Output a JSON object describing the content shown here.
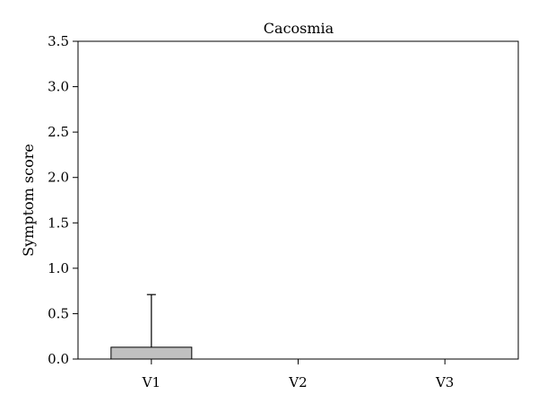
{
  "chart_data": {
    "type": "bar",
    "title": "Cacosmia",
    "xlabel": "",
    "ylabel": "Symptom score",
    "categories": [
      "V1",
      "V2",
      "V3"
    ],
    "series": [
      {
        "values": [
          0.13,
          0,
          0
        ],
        "error_upper": [
          0.58,
          0,
          0
        ],
        "color": "#c0c0c0"
      }
    ],
    "ylim": [
      0,
      3.5
    ],
    "yticks": [
      0.0,
      0.5,
      1.0,
      1.5,
      2.0,
      2.5,
      3.0,
      3.5
    ],
    "ytick_labels": [
      "0.0",
      "0.5",
      "1.0",
      "1.5",
      "2.0",
      "2.5",
      "3.0",
      "3.5"
    ],
    "grid": false,
    "legend": "none"
  }
}
